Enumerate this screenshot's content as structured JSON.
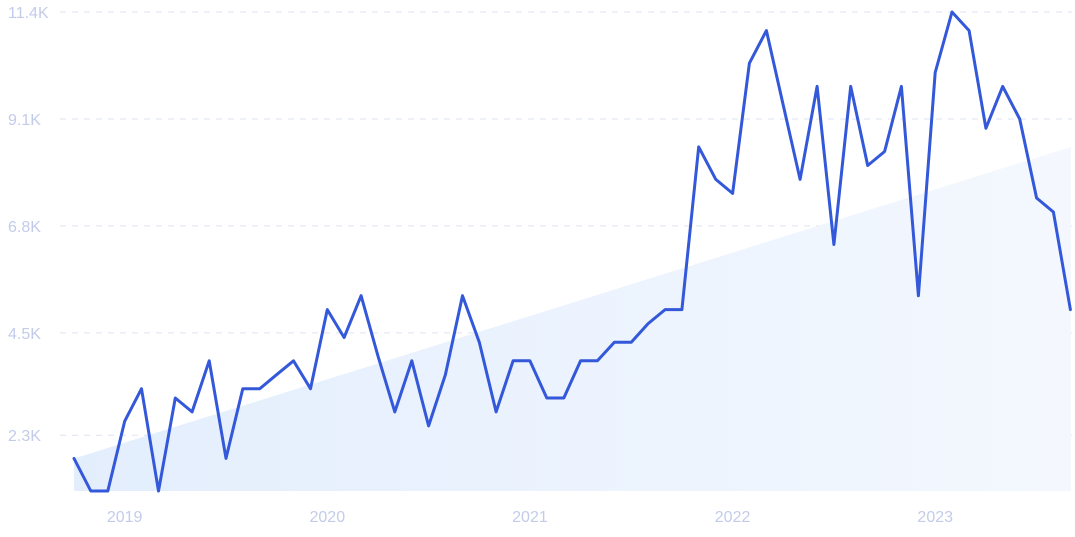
{
  "chart_data": {
    "type": "line",
    "title": "",
    "xlabel": "",
    "ylabel": "",
    "ylim": [
      1100,
      11400
    ],
    "grid": true,
    "y_ticks": [
      {
        "value": 11400,
        "label": "11.4K"
      },
      {
        "value": 9100,
        "label": "9.1K"
      },
      {
        "value": 6800,
        "label": "6.8K"
      },
      {
        "value": 4500,
        "label": "4.5K"
      },
      {
        "value": 2300,
        "label": "2.3K"
      }
    ],
    "x_ticks": [
      {
        "value": 2019.0,
        "label": "2019"
      },
      {
        "value": 2020.0,
        "label": "2020"
      },
      {
        "value": 2021.0,
        "label": "2021"
      },
      {
        "value": 2022.0,
        "label": "2022"
      },
      {
        "value": 2023.0,
        "label": "2023"
      }
    ],
    "x_range": [
      2018.75,
      2023.67
    ],
    "trend": {
      "start": 1800,
      "end": 8500
    },
    "colors": {
      "line": "#3358d9",
      "trend_fill": "#e7f0fd",
      "grid": "#dfe3f3",
      "tick": "#c3cbeb"
    },
    "series": [
      {
        "x": [
          2018.75,
          2018.833,
          2018.917,
          2019.0,
          2019.083,
          2019.167,
          2019.25,
          2019.333,
          2019.417,
          2019.5,
          2019.583,
          2019.667,
          2019.75,
          2019.833,
          2019.917,
          2020.0,
          2020.083,
          2020.167,
          2020.25,
          2020.333,
          2020.417,
          2020.5,
          2020.583,
          2020.667,
          2020.75,
          2020.833,
          2020.917,
          2021.0,
          2021.083,
          2021.167,
          2021.25,
          2021.333,
          2021.417,
          2021.5,
          2021.583,
          2021.667,
          2021.75,
          2021.833,
          2021.917,
          2022.0,
          2022.083,
          2022.167,
          2022.25,
          2022.333,
          2022.417,
          2022.5,
          2022.583,
          2022.667,
          2022.75,
          2022.833,
          2022.917,
          2023.0,
          2023.083,
          2023.167,
          2023.25,
          2023.333,
          2023.417,
          2023.5,
          2023.583,
          2023.667
        ],
        "y": [
          1800,
          1100,
          1100,
          2600,
          3300,
          1100,
          3100,
          2800,
          3900,
          1800,
          3300,
          3300,
          3600,
          3900,
          3300,
          5000,
          4400,
          5300,
          4000,
          2800,
          3900,
          2500,
          3600,
          5300,
          4300,
          2800,
          3900,
          3900,
          3100,
          3100,
          3900,
          3900,
          4300,
          4300,
          4700,
          5000,
          5000,
          8500,
          7800,
          7500,
          10300,
          11000,
          9400,
          7800,
          9800,
          6400,
          9800,
          8100,
          8400,
          9800,
          5300,
          10100,
          12200,
          11000,
          8900,
          9800,
          9100,
          7400,
          7100,
          5000
        ]
      }
    ]
  }
}
